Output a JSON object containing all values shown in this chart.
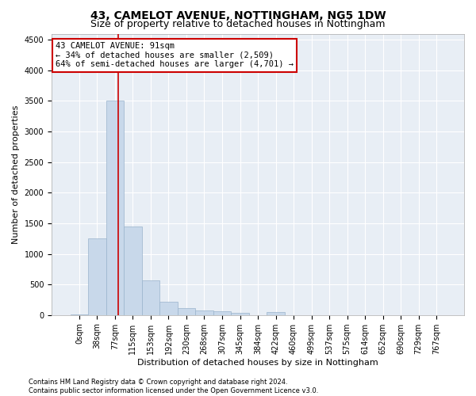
{
  "title": "43, CAMELOT AVENUE, NOTTINGHAM, NG5 1DW",
  "subtitle": "Size of property relative to detached houses in Nottingham",
  "xlabel": "Distribution of detached houses by size in Nottingham",
  "ylabel": "Number of detached properties",
  "bar_labels": [
    "0sqm",
    "38sqm",
    "77sqm",
    "115sqm",
    "153sqm",
    "192sqm",
    "230sqm",
    "268sqm",
    "307sqm",
    "345sqm",
    "384sqm",
    "422sqm",
    "460sqm",
    "499sqm",
    "537sqm",
    "575sqm",
    "614sqm",
    "652sqm",
    "690sqm",
    "729sqm",
    "767sqm"
  ],
  "bar_values": [
    10,
    1250,
    3500,
    1450,
    560,
    220,
    110,
    80,
    55,
    30,
    0,
    45,
    0,
    0,
    0,
    0,
    0,
    0,
    0,
    0,
    0
  ],
  "bar_color": "#c8d8ea",
  "bar_edge_color": "#9ab4cc",
  "vline_color": "#cc0000",
  "ylim": [
    0,
    4600
  ],
  "yticks": [
    0,
    500,
    1000,
    1500,
    2000,
    2500,
    3000,
    3500,
    4000,
    4500
  ],
  "annotation_line1": "43 CAMELOT AVENUE: 91sqm",
  "annotation_line2": "← 34% of detached houses are smaller (2,509)",
  "annotation_line3": "64% of semi-detached houses are larger (4,701) →",
  "annotation_box_facecolor": "white",
  "annotation_box_edgecolor": "#cc0000",
  "footer_line1": "Contains HM Land Registry data © Crown copyright and database right 2024.",
  "footer_line2": "Contains public sector information licensed under the Open Government Licence v3.0.",
  "plot_bg_color": "#e8eef5",
  "grid_color": "white",
  "title_fontsize": 10,
  "subtitle_fontsize": 9,
  "xlabel_fontsize": 8,
  "ylabel_fontsize": 8,
  "tick_fontsize": 7,
  "footer_fontsize": 6,
  "annotation_fontsize": 7.5
}
